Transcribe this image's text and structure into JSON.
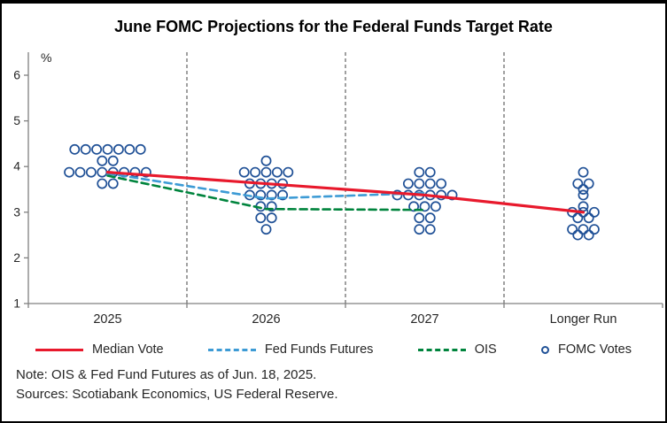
{
  "title": "June FOMC Projections for the Federal Funds Target Rate",
  "notes": {
    "note": "Note: OIS & Fed Fund Futures as of Jun. 18, 2025.",
    "sources": "Sources: Scotiabank Economics, US Federal Reserve."
  },
  "chart_data": {
    "type": "scatter",
    "title": "June FOMC Projections for the Federal Funds Target Rate",
    "ylabel": "%",
    "ylim": [
      1,
      6.5
    ],
    "yticks": [
      1,
      2,
      3,
      4,
      5,
      6
    ],
    "categories": [
      "2025",
      "2026",
      "2027",
      "Longer Run"
    ],
    "separators": "vertical-dashed",
    "legend_position": "bottom",
    "series": [
      {
        "name": "Median Vote",
        "type": "line",
        "style": "solid",
        "color": "#e8192c",
        "x": [
          "2025",
          "2026",
          "2027",
          "Longer Run"
        ],
        "values": [
          3.875,
          3.625,
          3.375,
          3.0
        ]
      },
      {
        "name": "Fed Funds Futures",
        "type": "line",
        "style": "dashed",
        "color": "#3d9bd5",
        "x": [
          "2025",
          "2026",
          "2027"
        ],
        "values": [
          3.85,
          3.3,
          3.42
        ]
      },
      {
        "name": "OIS",
        "type": "line",
        "style": "dashed",
        "color": "#00843d",
        "x": [
          "2025",
          "2026",
          "2027"
        ],
        "values": [
          3.8,
          3.07,
          3.05
        ]
      },
      {
        "name": "FOMC Votes",
        "type": "scatter",
        "marker": "open-circle",
        "color": "#1f5096",
        "points": {
          "2025": {
            "4.375": 7,
            "4.125": 2,
            "3.875": 8,
            "3.625": 2
          },
          "2026": {
            "4.125": 1,
            "3.875": 5,
            "3.625": 4,
            "3.375": 4,
            "3.125": 2,
            "2.875": 2,
            "2.625": 1
          },
          "2027": {
            "3.875": 2,
            "3.625": 4,
            "3.375": 6,
            "3.125": 3,
            "2.875": 2,
            "2.625": 2
          },
          "Longer Run": {
            "3.875": 1,
            "3.625": 2,
            "3.5": 1,
            "3.375": 1,
            "3.125": 1,
            "3.0": 3,
            "2.875": 2,
            "2.625": 3,
            "2.5": 2
          }
        }
      }
    ]
  }
}
